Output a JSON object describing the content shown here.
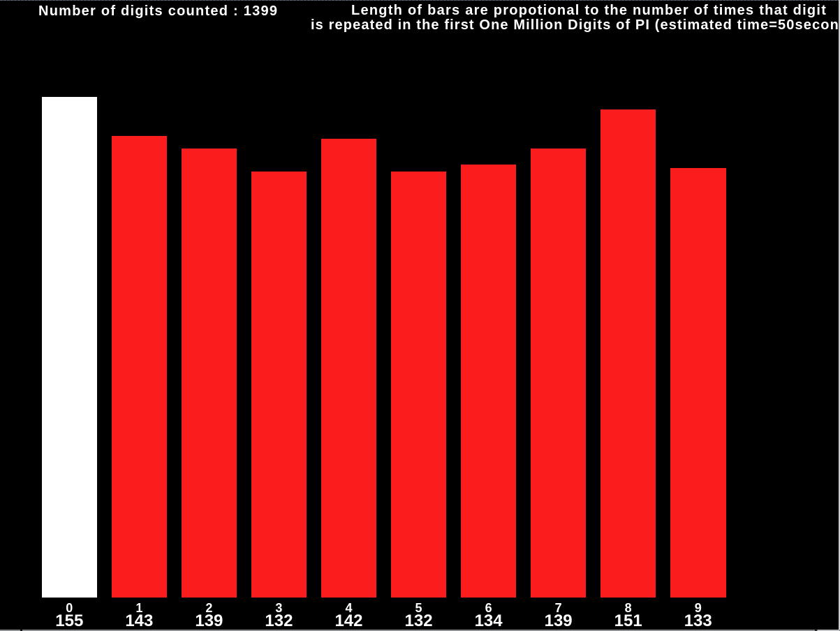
{
  "window": {
    "background": "#000000",
    "text_color": "#ffffff"
  },
  "header": {
    "counter_label": "Number of digits counted :",
    "counter_value": "1399",
    "description_line1": "Length of bars are propotional to the number of times that digit",
    "description_line2": "is repeated in the first One Million Digits of PI (estimated time=50secon"
  },
  "chart_data": {
    "type": "bar",
    "title": "Number of digits counted : 1399",
    "subtitle": "Length of bars are propotional to the number of times that digit is repeated in the first One Million Digits of PI (estimated time=50secon",
    "categories": [
      "0",
      "1",
      "2",
      "3",
      "4",
      "5",
      "6",
      "7",
      "8",
      "9"
    ],
    "values": [
      155,
      143,
      139,
      132,
      142,
      132,
      134,
      139,
      151,
      133
    ],
    "xlabel": "",
    "ylabel": "",
    "axes_shown": false,
    "grid": false,
    "legend": "none",
    "background_color": "#000000",
    "bar_color_default": "#fb1d1d",
    "bar_color_highlight": "#ffffff",
    "highlighted_category_index": 0,
    "label_color": "#ffffff"
  }
}
